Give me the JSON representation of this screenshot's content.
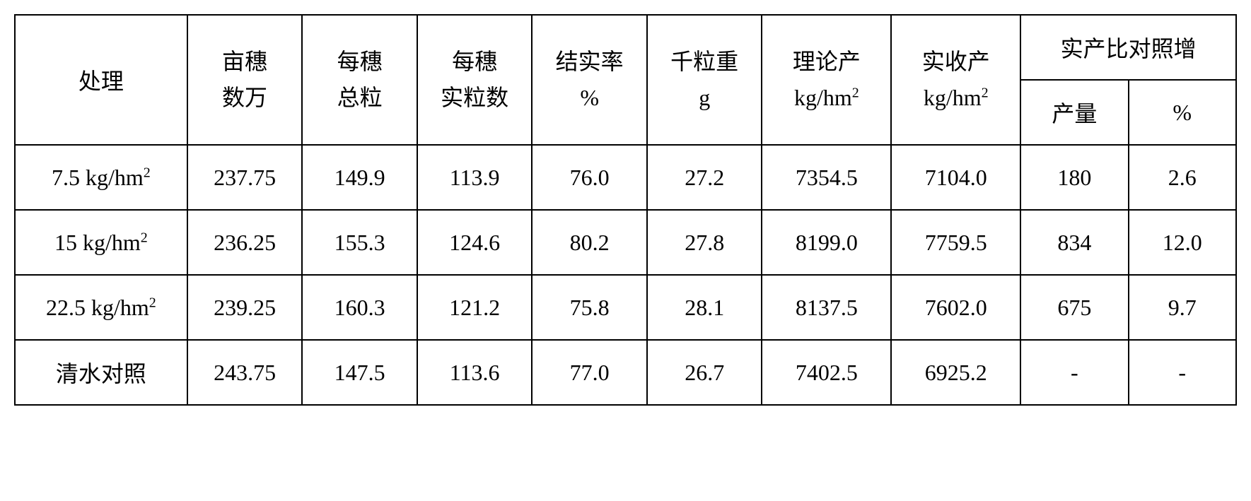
{
  "table": {
    "headers": {
      "treatment": "处理",
      "col1_line1": "亩穗",
      "col1_line2": "数万",
      "col2_line1": "每穗",
      "col2_line2": "总粒",
      "col3_line1": "每穗",
      "col3_line2": "实粒数",
      "col4_line1": "结实率",
      "col4_line2": "%",
      "col5_line1": "千粒重",
      "col5_line2": "g",
      "col6_line1": "理论产",
      "col6_line2_pre": "kg/hm",
      "col6_line2_sup": "2",
      "col7_line1": "实收产",
      "col7_line2_pre": "kg/hm",
      "col7_line2_sup": "2",
      "col8_top": "实产比对照增",
      "col8_sub1": "产量",
      "col8_sub2": "%"
    },
    "rows": [
      {
        "label_pre": "7.5 kg/hm",
        "label_sup": "2",
        "c1": "237.75",
        "c2": "149.9",
        "c3": "113.9",
        "c4": "76.0",
        "c5": "27.2",
        "c6": "7354.5",
        "c7": "7104.0",
        "c8": "180",
        "c9": "2.6"
      },
      {
        "label_pre": "15 kg/hm",
        "label_sup": "2",
        "c1": "236.25",
        "c2": "155.3",
        "c3": "124.6",
        "c4": "80.2",
        "c5": "27.8",
        "c6": "8199.0",
        "c7": "7759.5",
        "c8": "834",
        "c9": "12.0"
      },
      {
        "label_pre": "22.5 kg/hm",
        "label_sup": "2",
        "c1": "239.25",
        "c2": "160.3",
        "c3": "121.2",
        "c4": "75.8",
        "c5": "28.1",
        "c6": "8137.5",
        "c7": "7602.0",
        "c8": "675",
        "c9": "9.7"
      },
      {
        "label_plain": "清水对照",
        "c1": "243.75",
        "c2": "147.5",
        "c3": "113.6",
        "c4": "77.0",
        "c5": "26.7",
        "c6": "7402.5",
        "c7": "6925.2",
        "c8": "-",
        "c9": "-"
      }
    ]
  }
}
